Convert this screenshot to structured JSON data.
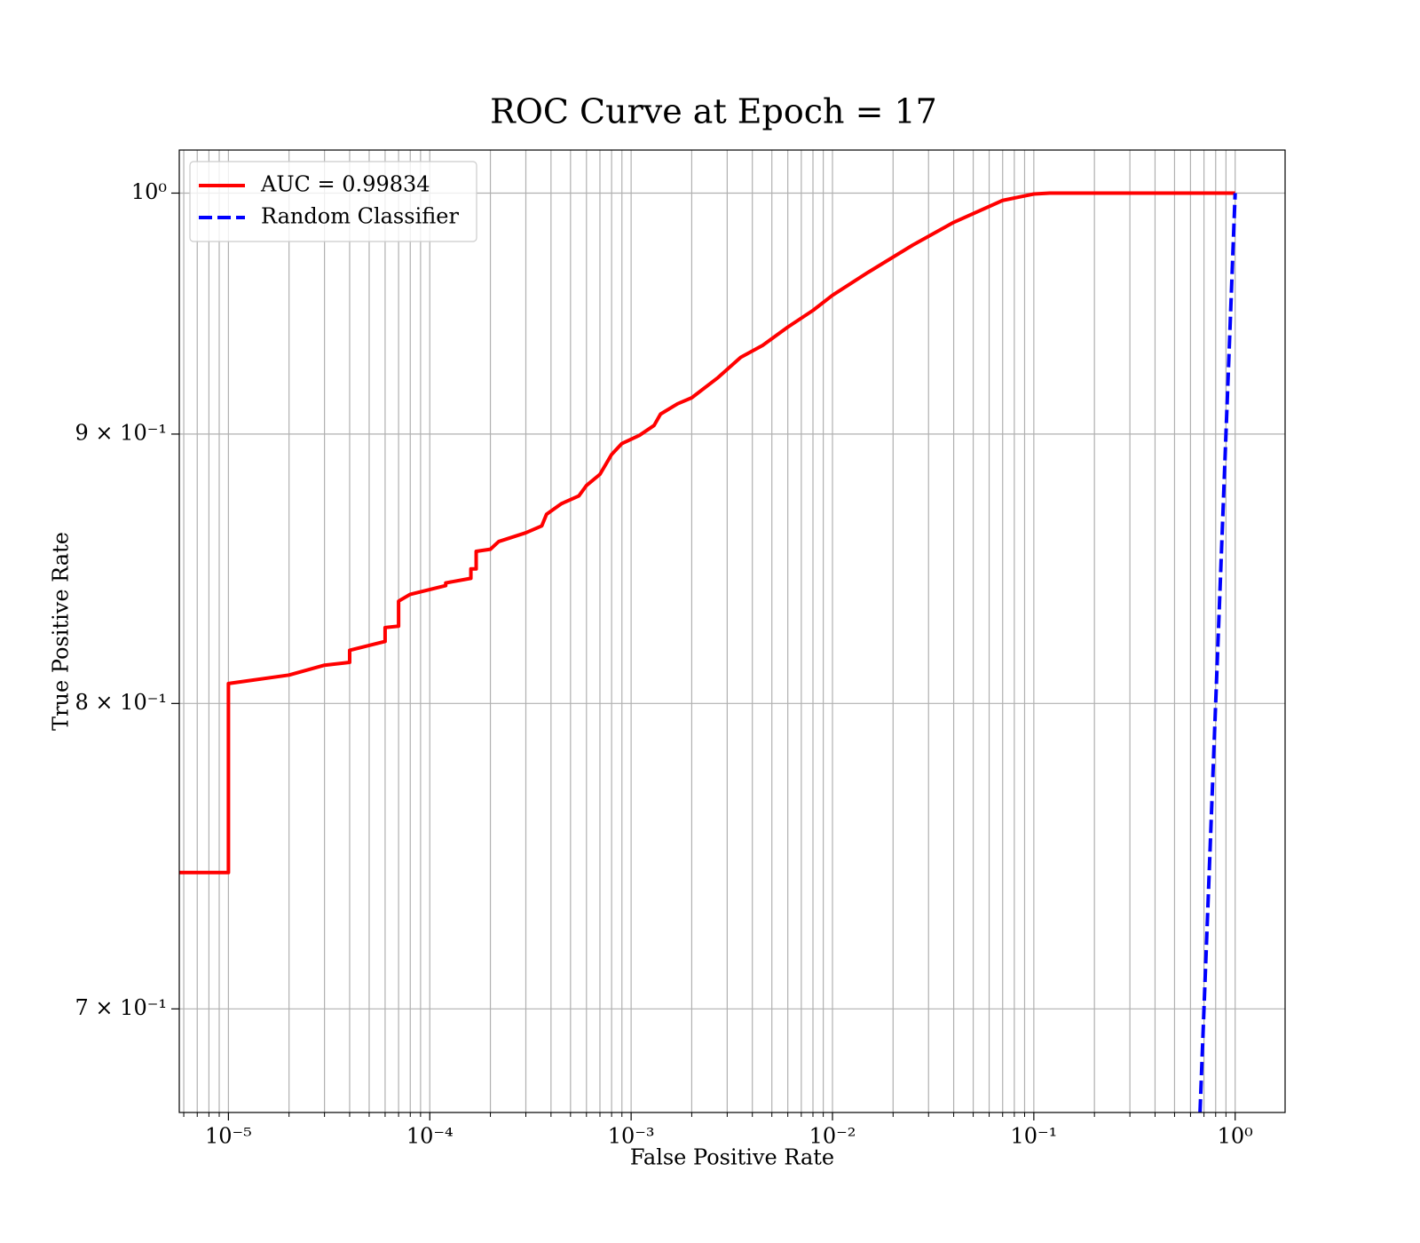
{
  "chart_data": {
    "type": "line",
    "title": "ROC Curve at Epoch = 17",
    "x_label": "False Positive Rate",
    "y_label": "True Positive Rate",
    "xscale": "log",
    "yscale": "log",
    "xlim": [
      5.7e-06,
      1.77
    ],
    "ylim": [
      0.669,
      1.019
    ],
    "xticks": [
      {
        "value": 1e-05,
        "label": "10⁻⁵"
      },
      {
        "value": 0.0001,
        "label": "10⁻⁴"
      },
      {
        "value": 0.001,
        "label": "10⁻³"
      },
      {
        "value": 0.01,
        "label": "10⁻²"
      },
      {
        "value": 0.1,
        "label": "10⁻¹"
      },
      {
        "value": 1,
        "label": "10⁰"
      }
    ],
    "xminorticks": [
      6e-06,
      7e-06,
      8e-06,
      9e-06,
      2e-05,
      3e-05,
      4e-05,
      5e-05,
      6e-05,
      7e-05,
      8e-05,
      9e-05,
      0.0002,
      0.0003,
      0.0004,
      0.0005,
      0.0006,
      0.0007,
      0.0008,
      0.0009,
      0.002,
      0.003,
      0.004,
      0.005,
      0.006,
      0.007,
      0.008,
      0.009,
      0.02,
      0.03,
      0.04,
      0.05,
      0.06,
      0.07,
      0.08,
      0.09,
      0.2,
      0.3,
      0.4,
      0.5,
      0.6,
      0.7,
      0.8,
      0.9
    ],
    "yticks": [
      {
        "value": 0.7,
        "label": "7 × 10⁻¹"
      },
      {
        "value": 0.8,
        "label": "8 × 10⁻¹"
      },
      {
        "value": 0.9,
        "label": "9 × 10⁻¹"
      },
      {
        "value": 1,
        "label": "10⁰"
      }
    ],
    "grid": true,
    "legend": "upper left",
    "series": [
      {
        "name": "AUC = 0.99834",
        "color": "#ff0000",
        "linestyle": "solid",
        "x": [
          5.7e-06,
          1e-05,
          1e-05,
          2e-05,
          3e-05,
          4e-05,
          4e-05,
          6e-05,
          6e-05,
          7e-05,
          7e-05,
          8e-05,
          0.00012,
          0.00012,
          0.00016,
          0.00016,
          0.00017,
          0.00017,
          0.0002,
          0.00022,
          0.0003,
          0.00036,
          0.00038,
          0.00045,
          0.00055,
          0.0006,
          0.0007,
          0.0008,
          0.0009,
          0.0011,
          0.0013,
          0.0014,
          0.0017,
          0.002,
          0.0027,
          0.0035,
          0.0045,
          0.006,
          0.008,
          0.01,
          0.015,
          0.025,
          0.04,
          0.07,
          0.1,
          0.12,
          1
        ],
        "values": [
          0.743,
          0.743,
          0.807,
          0.81,
          0.8135,
          0.8145,
          0.8188,
          0.822,
          0.827,
          0.8275,
          0.8366,
          0.8391,
          0.8423,
          0.8433,
          0.845,
          0.8485,
          0.8485,
          0.855,
          0.8558,
          0.8587,
          0.862,
          0.8646,
          0.869,
          0.873,
          0.876,
          0.88,
          0.8843,
          0.892,
          0.8963,
          0.8995,
          0.9034,
          0.9079,
          0.912,
          0.9144,
          0.9225,
          0.9307,
          0.9356,
          0.9431,
          0.95,
          0.9563,
          0.9659,
          0.9775,
          0.9873,
          0.9968,
          0.9996,
          1,
          1
        ]
      },
      {
        "name": "Random Classifier",
        "color": "#0000ff",
        "linestyle": "dashed",
        "x": [
          0.669,
          1
        ],
        "values": [
          0.669,
          1
        ]
      }
    ]
  }
}
